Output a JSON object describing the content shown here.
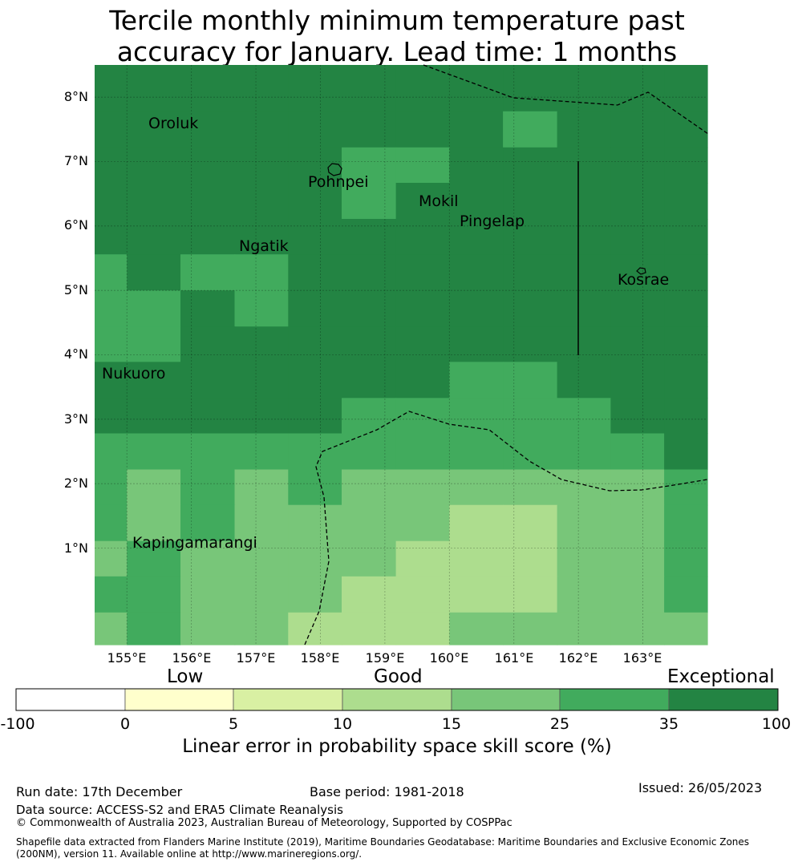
{
  "title": {
    "line1": "Tercile monthly minimum temperature past",
    "line2": "accuracy for January. Lead time: 1 months"
  },
  "map": {
    "lon_labels": [
      "155°E",
      "156°E",
      "157°E",
      "158°E",
      "159°E",
      "160°E",
      "161°E",
      "162°E",
      "163°E"
    ],
    "lat_labels": [
      "1°N",
      "2°N",
      "3°N",
      "4°N",
      "5°N",
      "6°N",
      "7°N",
      "8°N"
    ],
    "places": [
      "Oroluk",
      "Pohnpei",
      "Mokil",
      "Pingelap",
      "Ngatik",
      "Kosrae",
      "Nukuoro",
      "Kapingamarangi"
    ],
    "extent": {
      "lon": [
        154.5,
        164.0
      ],
      "lat": [
        -0.5,
        8.5
      ]
    },
    "grid_cols_lon_edges": [
      154.5,
      155.0,
      155.83,
      156.67,
      157.5,
      158.33,
      159.17,
      160.0,
      160.83,
      161.67,
      162.5,
      163.33,
      164.0
    ],
    "grid_rows_lat_edges": [
      8.5,
      7.78,
      7.22,
      6.67,
      6.11,
      5.56,
      5.0,
      4.44,
      3.89,
      3.33,
      2.78,
      2.22,
      1.67,
      1.11,
      0.56,
      0.0,
      -0.5
    ],
    "skill_bins": [
      [
        6,
        6,
        6,
        6,
        6,
        6,
        6,
        6,
        6,
        6,
        6,
        6
      ],
      [
        6,
        6,
        6,
        6,
        6,
        6,
        6,
        6,
        5,
        6,
        6,
        6
      ],
      [
        6,
        6,
        6,
        6,
        6,
        5,
        5,
        6,
        6,
        6,
        6,
        6
      ],
      [
        6,
        6,
        6,
        6,
        6,
        5,
        6,
        6,
        6,
        6,
        6,
        6
      ],
      [
        6,
        6,
        6,
        6,
        6,
        6,
        6,
        6,
        6,
        6,
        6,
        6
      ],
      [
        5,
        6,
        5,
        5,
        6,
        6,
        6,
        6,
        6,
        6,
        6,
        6
      ],
      [
        5,
        5,
        6,
        5,
        6,
        6,
        6,
        6,
        6,
        6,
        6,
        6
      ],
      [
        5,
        5,
        6,
        6,
        6,
        6,
        6,
        6,
        6,
        6,
        6,
        6
      ],
      [
        6,
        6,
        6,
        6,
        6,
        6,
        6,
        5,
        5,
        6,
        6,
        6
      ],
      [
        6,
        6,
        6,
        6,
        6,
        5,
        5,
        5,
        5,
        5,
        6,
        6
      ],
      [
        5,
        5,
        5,
        5,
        5,
        5,
        5,
        5,
        5,
        5,
        5,
        6
      ],
      [
        5,
        4,
        5,
        4,
        5,
        4,
        4,
        4,
        4,
        4,
        4,
        5
      ],
      [
        5,
        4,
        5,
        4,
        4,
        4,
        4,
        3,
        3,
        4,
        4,
        5
      ],
      [
        4,
        5,
        4,
        4,
        4,
        4,
        3,
        3,
        3,
        4,
        4,
        5
      ],
      [
        5,
        5,
        4,
        4,
        4,
        3,
        3,
        3,
        3,
        4,
        4,
        5
      ],
      [
        4,
        5,
        4,
        4,
        3,
        3,
        3,
        4,
        4,
        4,
        4,
        4
      ]
    ]
  },
  "colorbar": {
    "categories": [
      "Low",
      "Good",
      "Exceptional"
    ],
    "ticks": [
      "-100",
      "0",
      "5",
      "10",
      "15",
      "25",
      "35",
      "100"
    ],
    "colors": [
      "#ffffff",
      "#ffffcc",
      "#d9f0a3",
      "#addd8e",
      "#78c679",
      "#41ab5d",
      "#238443"
    ],
    "title": "Linear error in probability space skill score (%)"
  },
  "footer": {
    "run_date": "Run date: 17th December",
    "base_period": "Base period: 1981-2018",
    "issued": "Issued: 26/05/2023",
    "data_source": "Data source: ACCESS-S2 and ERA5 Climate Reanalysis",
    "copyright": "© Commonwealth of Australia 2023, Australian Bureau of Meteorology, Supported by COSPPac",
    "shapefile_line1": "Shapefile data extracted from Flanders Marine Institute (2019), Maritime Boundaries Geodatabase: Maritime Boundaries and Exclusive Economic Zones",
    "shapefile_line2": "(200NM), version 11. Available online at http://www.marineregions.org/."
  }
}
